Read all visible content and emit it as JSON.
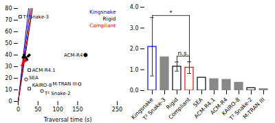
{
  "chart_data": [
    {
      "type": "scatter",
      "xlabel": "Traversal time (s)",
      "xlim": [
        0,
        250
      ],
      "ylim": [
        0,
        80
      ],
      "xticks": [
        0,
        50,
        100,
        150,
        250
      ],
      "yticks": [
        0,
        10,
        20,
        30,
        40,
        50,
        60,
        70,
        80
      ],
      "legend": "upper right",
      "series": [
        {
          "name": "Kingsnake",
          "type": "line",
          "color": "blue",
          "x": [
            0,
            26
          ],
          "values": [
            0,
            80
          ]
        },
        {
          "type": "line",
          "color": "blue",
          "x": [
            0,
            30
          ],
          "values": [
            0,
            80
          ]
        },
        {
          "name": "Rigid",
          "type": "line",
          "color": "black",
          "x": [
            0,
            36
          ],
          "values": [
            0,
            80
          ]
        },
        {
          "name": "Compliant",
          "type": "line",
          "color": "red",
          "x": [
            0,
            33
          ],
          "values": [
            0,
            80
          ]
        },
        {
          "type": "scatter",
          "color": "black",
          "marker": "circle",
          "x": [
            12,
            15,
            18,
            20,
            22,
            25,
            28
          ],
          "values": [
            38,
            40,
            38,
            37,
            36,
            39,
            40
          ]
        },
        {
          "type": "scatter",
          "color": "red",
          "marker": "circle",
          "x": [
            10,
            12,
            14,
            16,
            18
          ],
          "values": [
            31,
            33,
            35,
            36,
            35
          ]
        }
      ],
      "annotations": [
        {
          "text": "T² Snake-3",
          "x": 5,
          "y": 73,
          "marker": "open square",
          "color": "black"
        },
        {
          "text": "ACM-R4",
          "x": 170,
          "y": 40,
          "marker": "circle",
          "color": "black"
        },
        {
          "text": "ACM-R4.1",
          "x": 28,
          "y": 27,
          "marker": "open square",
          "color": "black"
        },
        {
          "text": "SEA",
          "x": 20,
          "y": 19,
          "marker": "open circle",
          "color": "black"
        },
        {
          "text": "KAIRO-8",
          "x": 28,
          "y": 11,
          "marker": "open square",
          "color": "black"
        },
        {
          "text": "T² Snake-2",
          "x": 60,
          "y": 9,
          "marker": "open circle",
          "color": "black"
        },
        {
          "text": "M-TRAN III",
          "x": 155,
          "y": 15,
          "marker": "open circle",
          "color": "black"
        }
      ]
    },
    {
      "type": "bar",
      "categories": [
        "Kingsnake",
        "T² Snake-3",
        "Rigid",
        "Compliant",
        "SEA",
        "ACM-R4.1",
        "ACM-R4",
        "KAIRO-8",
        "T² Snake-2",
        "M-TRAN III"
      ],
      "values": [
        2.1,
        1.6,
        1.15,
        1.1,
        0.62,
        0.55,
        0.52,
        0.38,
        0.12,
        0.07
      ],
      "errors": [
        1.4,
        0.0,
        0.22,
        0.28,
        0.0,
        0.0,
        0.0,
        0.0,
        0.0,
        0.0
      ],
      "colors": [
        "white",
        "#888888",
        "white",
        "white",
        "white",
        "#888888",
        "#888888",
        "#888888",
        "white",
        "#888888"
      ],
      "edge_colors": [
        "blue",
        "#888888",
        "black",
        "red",
        "black",
        "#888888",
        "#888888",
        "#888888",
        "black",
        "#888888"
      ],
      "ylim": [
        0,
        4
      ],
      "yticks": [
        0,
        1,
        2,
        3,
        4
      ],
      "annotations": [
        {
          "text": "*",
          "from": "Kingsnake",
          "to": "Compliant",
          "y": 3.6
        },
        {
          "text": "n.s.",
          "from": "Rigid",
          "to": "Compliant",
          "y": 1.65
        }
      ]
    }
  ]
}
